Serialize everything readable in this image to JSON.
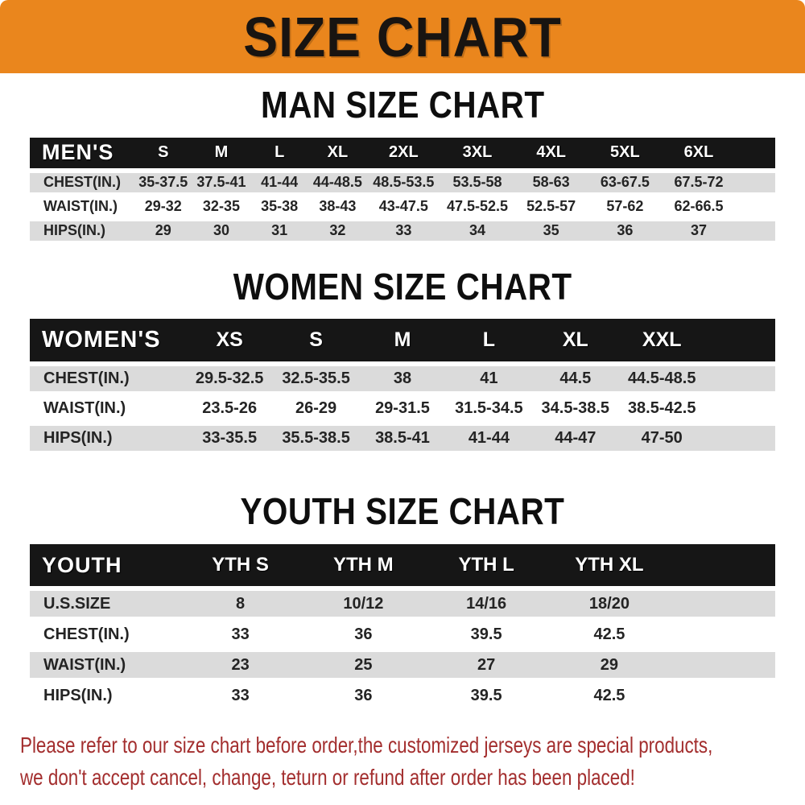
{
  "banner": {
    "title": "SIZE CHART"
  },
  "colors": {
    "banner_bg": "#EA861D",
    "band_bg": "#161616",
    "row_alt": "#DBDBDB",
    "disclaimer": "#A32E2E"
  },
  "sections": [
    {
      "id": "men",
      "title": "MAN SIZE CHART",
      "header_label": "MEN'S",
      "columns": [
        "S",
        "M",
        "L",
        "XL",
        "2XL",
        "3XL",
        "4XL",
        "5XL",
        "6XL"
      ],
      "rows": [
        {
          "label": "CHEST(IN.)",
          "values": [
            "35-37.5",
            "37.5-41",
            "41-44",
            "44-48.5",
            "48.5-53.5",
            "53.5-58",
            "58-63",
            "63-67.5",
            "67.5-72"
          ]
        },
        {
          "label": "WAIST(IN.)",
          "values": [
            "29-32",
            "32-35",
            "35-38",
            "38-43",
            "43-47.5",
            "47.5-52.5",
            "52.5-57",
            "57-62",
            "62-66.5"
          ]
        },
        {
          "label": "HIPS(IN.)",
          "values": [
            "29",
            "30",
            "31",
            "32",
            "33",
            "34",
            "35",
            "36",
            "37"
          ]
        }
      ]
    },
    {
      "id": "women",
      "title": "WOMEN SIZE CHART",
      "header_label": "WOMEN'S",
      "columns": [
        "XS",
        "S",
        "M",
        "L",
        "XL",
        "XXL"
      ],
      "rows": [
        {
          "label": "CHEST(IN.)",
          "values": [
            "29.5-32.5",
            "32.5-35.5",
            "38",
            "41",
            "44.5",
            "44.5-48.5"
          ]
        },
        {
          "label": "WAIST(IN.)",
          "values": [
            "23.5-26",
            "26-29",
            "29-31.5",
            "31.5-34.5",
            "34.5-38.5",
            "38.5-42.5"
          ]
        },
        {
          "label": "HIPS(IN.)",
          "values": [
            "33-35.5",
            "35.5-38.5",
            "38.5-41",
            "41-44",
            "44-47",
            "47-50"
          ]
        }
      ]
    },
    {
      "id": "youth",
      "title": "YOUTH SIZE CHART",
      "header_label": "YOUTH",
      "columns": [
        "YTH S",
        "YTH M",
        "YTH L",
        "YTH XL"
      ],
      "rows": [
        {
          "label": "U.S.SIZE",
          "values": [
            "8",
            "10/12",
            "14/16",
            "18/20"
          ]
        },
        {
          "label": "CHEST(IN.)",
          "values": [
            "33",
            "36",
            "39.5",
            "42.5"
          ]
        },
        {
          "label": "WAIST(IN.)",
          "values": [
            "23",
            "25",
            "27",
            "29"
          ]
        },
        {
          "label": "HIPS(IN.)",
          "values": [
            "33",
            "36",
            "39.5",
            "42.5"
          ]
        }
      ]
    }
  ],
  "disclaimer": {
    "line1": "Please refer to our size chart before order,the customized jerseys are special products,",
    "line2": "we don't accept cancel, change, teturn or refund after order has been placed!"
  }
}
